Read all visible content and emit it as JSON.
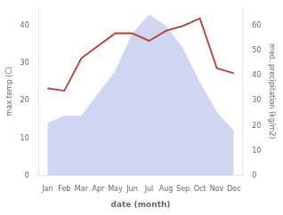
{
  "chart_data": {
    "type": "line",
    "categories": [
      "Jan",
      "Feb",
      "Mar",
      "Apr",
      "May",
      "Jun",
      "Jul",
      "Aug",
      "Sep",
      "Oct",
      "Nov",
      "Dec"
    ],
    "xlabel": "date (month)",
    "ylabel": "max temp (C)",
    "y2label": "med. precipitation (kg/m2)",
    "series": [
      {
        "type": "area",
        "color": "#aab4e8",
        "values": [
          14,
          16,
          16,
          22,
          28,
          38,
          43,
          40,
          34,
          25,
          17,
          12
        ]
      },
      {
        "type": "line",
        "color": "#c0392b",
        "axis": "y2",
        "values": [
          35,
          34,
          47,
          52,
          57,
          57,
          54,
          58,
          60,
          63,
          43,
          41
        ]
      }
    ],
    "ylim": [
      0,
      45
    ],
    "yticks": [
      0,
      10,
      20,
      30,
      40
    ],
    "y2lim": [
      0,
      67.5
    ],
    "y2ticks": [
      0,
      10,
      20,
      30,
      40,
      50,
      60
    ],
    "grid": false
  }
}
